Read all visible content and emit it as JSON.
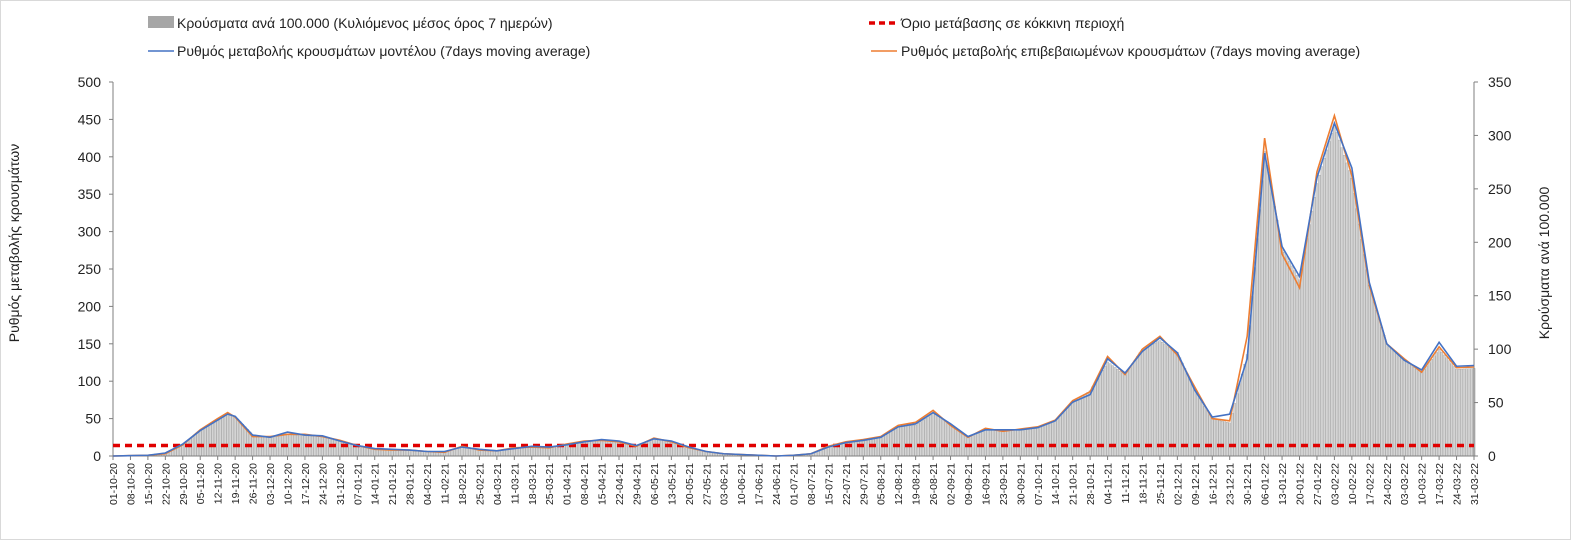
{
  "chart_data": {
    "type": "bar+line",
    "title": "",
    "y_left_label": "Ρυθμός μεταβολής κρουσμάτων",
    "y_right_label": "Κρούσματα ανά 100.000",
    "y_left_range": [
      0,
      500
    ],
    "y_left_ticks": [
      0,
      50,
      100,
      150,
      200,
      250,
      300,
      350,
      400,
      450,
      500
    ],
    "y_right_range": [
      0,
      350
    ],
    "y_right_ticks": [
      0,
      50,
      100,
      150,
      200,
      250,
      300,
      350
    ],
    "x_start_date": "2020-10-01",
    "x_end_date": "2022-03-31",
    "x_tick_labels": [
      "01-10-20",
      "08-10-20",
      "15-10-20",
      "22-10-20",
      "29-10-20",
      "05-11-20",
      "12-11-20",
      "19-11-20",
      "26-11-20",
      "03-12-20",
      "10-12-20",
      "17-12-20",
      "24-12-20",
      "31-12-20",
      "07-01-21",
      "14-01-21",
      "21-01-21",
      "28-01-21",
      "04-02-21",
      "11-02-21",
      "18-02-21",
      "25-02-21",
      "04-03-21",
      "11-03-21",
      "18-03-21",
      "25-03-21",
      "01-04-21",
      "08-04-21",
      "15-04-21",
      "22-04-21",
      "29-04-21",
      "06-05-21",
      "13-05-21",
      "20-05-21",
      "27-05-21",
      "03-06-21",
      "10-06-21",
      "17-06-21",
      "24-06-21",
      "01-07-21",
      "08-07-21",
      "15-07-21",
      "22-07-21",
      "29-07-21",
      "05-08-21",
      "12-08-21",
      "19-08-21",
      "26-08-21",
      "02-09-21",
      "09-09-21",
      "16-09-21",
      "23-09-21",
      "30-09-21",
      "07-10-21",
      "14-10-21",
      "21-10-21",
      "28-10-21",
      "04-11-21",
      "11-11-21",
      "18-11-21",
      "25-11-21",
      "02-12-21",
      "09-12-21",
      "16-12-21",
      "23-12-21",
      "30-12-21",
      "06-01-22",
      "13-01-22",
      "20-01-22",
      "27-01-22",
      "03-02-22",
      "10-02-22",
      "17-02-22",
      "24-02-22",
      "03-03-22",
      "10-03-22",
      "17-03-22",
      "24-03-22",
      "31-03-22"
    ],
    "legend": [
      {
        "key": "bars",
        "label": "Κρούσματα ανά 100.000 (Κυλιόμενος μέσος όρος 7 ημερών)",
        "color": "#a6a6a6"
      },
      {
        "key": "threshold",
        "label": "Όριο μετάβασης σε κόκκινη περιοχή",
        "color": "#e00000"
      },
      {
        "key": "model",
        "label": "Ρυθμός μεταβολής κρουσμάτων μοντέλου (7days moving average)",
        "color": "#4472c4"
      },
      {
        "key": "confirmed",
        "label": "Ρυθμός μεταβολής επιβεβαιωμένων κρουσμάτων (7days moving average)",
        "color": "#ed7d31"
      }
    ],
    "threshold_value_left_axis": 14,
    "series": [
      {
        "name": "Κρούσματα ανά 100.000 (Κυλιόμενος μέσος όρος 7 ημερών)",
        "axis": "right",
        "kind": "bar",
        "points": [
          [
            "2020-10-01",
            0
          ],
          [
            "2020-10-15",
            1
          ],
          [
            "2020-10-22",
            3
          ],
          [
            "2020-10-29",
            11
          ],
          [
            "2020-11-05",
            24
          ],
          [
            "2020-11-12",
            35
          ],
          [
            "2020-11-16",
            39
          ],
          [
            "2020-11-19",
            37
          ],
          [
            "2020-11-26",
            20
          ],
          [
            "2020-12-03",
            17
          ],
          [
            "2020-12-10",
            20
          ],
          [
            "2020-12-17",
            19
          ],
          [
            "2020-12-24",
            18
          ],
          [
            "2020-12-31",
            14
          ],
          [
            "2021-01-07",
            10
          ],
          [
            "2021-01-14",
            7
          ],
          [
            "2021-01-21",
            6
          ],
          [
            "2021-01-28",
            5
          ],
          [
            "2021-02-04",
            4
          ],
          [
            "2021-02-11",
            4
          ],
          [
            "2021-02-18",
            8
          ],
          [
            "2021-02-25",
            6
          ],
          [
            "2021-03-04",
            5
          ],
          [
            "2021-03-11",
            7
          ],
          [
            "2021-03-18",
            9
          ],
          [
            "2021-03-25",
            8
          ],
          [
            "2021-04-01",
            10
          ],
          [
            "2021-04-08",
            13
          ],
          [
            "2021-04-15",
            15
          ],
          [
            "2021-04-22",
            14
          ],
          [
            "2021-04-29",
            10
          ],
          [
            "2021-05-06",
            16
          ],
          [
            "2021-05-13",
            14
          ],
          [
            "2021-05-20",
            8
          ],
          [
            "2021-05-27",
            4
          ],
          [
            "2021-06-03",
            2
          ],
          [
            "2021-06-10",
            1
          ],
          [
            "2021-06-17",
            1
          ],
          [
            "2021-06-24",
            0
          ],
          [
            "2021-07-01",
            1
          ],
          [
            "2021-07-08",
            2
          ],
          [
            "2021-07-15",
            8
          ],
          [
            "2021-07-22",
            12
          ],
          [
            "2021-07-29",
            14
          ],
          [
            "2021-08-05",
            17
          ],
          [
            "2021-08-12",
            27
          ],
          [
            "2021-08-19",
            29
          ],
          [
            "2021-08-26",
            40
          ],
          [
            "2021-09-02",
            30
          ],
          [
            "2021-09-09",
            18
          ],
          [
            "2021-09-16",
            24
          ],
          [
            "2021-09-23",
            24
          ],
          [
            "2021-09-30",
            24
          ],
          [
            "2021-10-07",
            26
          ],
          [
            "2021-10-14",
            33
          ],
          [
            "2021-10-21",
            50
          ],
          [
            "2021-10-28",
            61
          ],
          [
            "2021-11-04",
            88
          ],
          [
            "2021-11-11",
            76
          ],
          [
            "2021-11-18",
            100
          ],
          [
            "2021-11-25",
            108
          ],
          [
            "2021-12-02",
            97
          ],
          [
            "2021-12-09",
            62
          ],
          [
            "2021-12-16",
            35
          ],
          [
            "2021-12-23",
            31
          ],
          [
            "2021-12-30",
            95
          ],
          [
            "2022-01-06",
            285
          ],
          [
            "2022-01-13",
            195
          ],
          [
            "2022-01-20",
            165
          ],
          [
            "2022-01-27",
            255
          ],
          [
            "2022-02-03",
            310
          ],
          [
            "2022-02-10",
            260
          ],
          [
            "2022-02-17",
            160
          ],
          [
            "2022-02-24",
            105
          ],
          [
            "2022-03-03",
            90
          ],
          [
            "2022-03-10",
            78
          ],
          [
            "2022-03-17",
            100
          ],
          [
            "2022-03-24",
            81
          ],
          [
            "2022-03-31",
            82
          ]
        ]
      },
      {
        "name": "Ρυθμός μεταβολής κρουσμάτων μοντέλου (7days moving average)",
        "axis": "left",
        "kind": "line",
        "points": [
          [
            "2020-10-01",
            0
          ],
          [
            "2020-10-15",
            1
          ],
          [
            "2020-10-22",
            4
          ],
          [
            "2020-10-29",
            16
          ],
          [
            "2020-11-05",
            34
          ],
          [
            "2020-11-12",
            48
          ],
          [
            "2020-11-16",
            56
          ],
          [
            "2020-11-19",
            53
          ],
          [
            "2020-11-26",
            28
          ],
          [
            "2020-12-03",
            25
          ],
          [
            "2020-12-10",
            32
          ],
          [
            "2020-12-17",
            28
          ],
          [
            "2020-12-24",
            27
          ],
          [
            "2020-12-31",
            20
          ],
          [
            "2021-01-07",
            14
          ],
          [
            "2021-01-14",
            10
          ],
          [
            "2021-01-21",
            9
          ],
          [
            "2021-01-28",
            8
          ],
          [
            "2021-02-04",
            6
          ],
          [
            "2021-02-11",
            6
          ],
          [
            "2021-02-18",
            12
          ],
          [
            "2021-02-25",
            9
          ],
          [
            "2021-03-04",
            7
          ],
          [
            "2021-03-11",
            10
          ],
          [
            "2021-03-18",
            13
          ],
          [
            "2021-03-25",
            12
          ],
          [
            "2021-04-01",
            15
          ],
          [
            "2021-04-08",
            19
          ],
          [
            "2021-04-15",
            22
          ],
          [
            "2021-04-22",
            20
          ],
          [
            "2021-04-29",
            14
          ],
          [
            "2021-05-06",
            23
          ],
          [
            "2021-05-13",
            20
          ],
          [
            "2021-05-20",
            12
          ],
          [
            "2021-05-27",
            6
          ],
          [
            "2021-06-03",
            3
          ],
          [
            "2021-06-10",
            2
          ],
          [
            "2021-06-17",
            1
          ],
          [
            "2021-06-24",
            0
          ],
          [
            "2021-07-01",
            1
          ],
          [
            "2021-07-08",
            3
          ],
          [
            "2021-07-15",
            12
          ],
          [
            "2021-07-22",
            18
          ],
          [
            "2021-07-29",
            21
          ],
          [
            "2021-08-05",
            25
          ],
          [
            "2021-08-12",
            39
          ],
          [
            "2021-08-19",
            43
          ],
          [
            "2021-08-26",
            58
          ],
          [
            "2021-09-02",
            43
          ],
          [
            "2021-09-09",
            26
          ],
          [
            "2021-09-16",
            35
          ],
          [
            "2021-09-23",
            35
          ],
          [
            "2021-09-30",
            35
          ],
          [
            "2021-10-07",
            38
          ],
          [
            "2021-10-14",
            47
          ],
          [
            "2021-10-21",
            72
          ],
          [
            "2021-10-28",
            82
          ],
          [
            "2021-11-04",
            130
          ],
          [
            "2021-11-11",
            111
          ],
          [
            "2021-11-18",
            140
          ],
          [
            "2021-11-25",
            158
          ],
          [
            "2021-12-02",
            138
          ],
          [
            "2021-12-09",
            88
          ],
          [
            "2021-12-16",
            52
          ],
          [
            "2021-12-23",
            56
          ],
          [
            "2021-12-30",
            130
          ],
          [
            "2022-01-06",
            405
          ],
          [
            "2022-01-13",
            280
          ],
          [
            "2022-01-20",
            240
          ],
          [
            "2022-01-27",
            372
          ],
          [
            "2022-02-03",
            445
          ],
          [
            "2022-02-10",
            385
          ],
          [
            "2022-02-17",
            232
          ],
          [
            "2022-02-24",
            150
          ],
          [
            "2022-03-03",
            128
          ],
          [
            "2022-03-10",
            115
          ],
          [
            "2022-03-17",
            152
          ],
          [
            "2022-03-24",
            120
          ],
          [
            "2022-03-31",
            121
          ]
        ]
      },
      {
        "name": "Ρυθμός μεταβολής επιβεβαιωμένων κρουσμάτων (7days moving average)",
        "axis": "left",
        "kind": "line",
        "points": [
          [
            "2020-10-01",
            0
          ],
          [
            "2020-10-15",
            1
          ],
          [
            "2020-10-22",
            3
          ],
          [
            "2020-10-29",
            15
          ],
          [
            "2020-11-05",
            35
          ],
          [
            "2020-11-12",
            50
          ],
          [
            "2020-11-16",
            58
          ],
          [
            "2020-11-19",
            52
          ],
          [
            "2020-11-26",
            26
          ],
          [
            "2020-12-03",
            26
          ],
          [
            "2020-12-10",
            29
          ],
          [
            "2020-12-17",
            29
          ],
          [
            "2020-12-24",
            26
          ],
          [
            "2020-12-31",
            21
          ],
          [
            "2021-01-07",
            14
          ],
          [
            "2021-01-14",
            9
          ],
          [
            "2021-01-21",
            8
          ],
          [
            "2021-01-28",
            8
          ],
          [
            "2021-02-04",
            6
          ],
          [
            "2021-02-11",
            5
          ],
          [
            "2021-02-18",
            13
          ],
          [
            "2021-02-25",
            8
          ],
          [
            "2021-03-04",
            7
          ],
          [
            "2021-03-11",
            11
          ],
          [
            "2021-03-18",
            12
          ],
          [
            "2021-03-25",
            11
          ],
          [
            "2021-04-01",
            16
          ],
          [
            "2021-04-08",
            20
          ],
          [
            "2021-04-15",
            21
          ],
          [
            "2021-04-22",
            19
          ],
          [
            "2021-04-29",
            13
          ],
          [
            "2021-05-06",
            24
          ],
          [
            "2021-05-13",
            19
          ],
          [
            "2021-05-20",
            11
          ],
          [
            "2021-05-27",
            6
          ],
          [
            "2021-06-03",
            3
          ],
          [
            "2021-06-10",
            2
          ],
          [
            "2021-06-17",
            1
          ],
          [
            "2021-06-24",
            0
          ],
          [
            "2021-07-01",
            1
          ],
          [
            "2021-07-08",
            3
          ],
          [
            "2021-07-15",
            13
          ],
          [
            "2021-07-22",
            19
          ],
          [
            "2021-07-29",
            22
          ],
          [
            "2021-08-05",
            26
          ],
          [
            "2021-08-12",
            41
          ],
          [
            "2021-08-19",
            45
          ],
          [
            "2021-08-26",
            61
          ],
          [
            "2021-09-02",
            41
          ],
          [
            "2021-09-09",
            25
          ],
          [
            "2021-09-16",
            37
          ],
          [
            "2021-09-23",
            33
          ],
          [
            "2021-09-30",
            36
          ],
          [
            "2021-10-07",
            39
          ],
          [
            "2021-10-14",
            48
          ],
          [
            "2021-10-21",
            74
          ],
          [
            "2021-10-28",
            86
          ],
          [
            "2021-11-04",
            133
          ],
          [
            "2021-11-11",
            109
          ],
          [
            "2021-11-18",
            143
          ],
          [
            "2021-11-25",
            160
          ],
          [
            "2021-12-02",
            135
          ],
          [
            "2021-12-09",
            92
          ],
          [
            "2021-12-16",
            50
          ],
          [
            "2021-12-23",
            47
          ],
          [
            "2021-12-30",
            160
          ],
          [
            "2022-01-06",
            425
          ],
          [
            "2022-01-13",
            270
          ],
          [
            "2022-01-20",
            225
          ],
          [
            "2022-01-27",
            380
          ],
          [
            "2022-02-03",
            455
          ],
          [
            "2022-02-10",
            375
          ],
          [
            "2022-02-17",
            228
          ],
          [
            "2022-02-24",
            150
          ],
          [
            "2022-03-03",
            130
          ],
          [
            "2022-03-10",
            112
          ],
          [
            "2022-03-17",
            146
          ],
          [
            "2022-03-24",
            118
          ],
          [
            "2022-03-31",
            119
          ]
        ]
      }
    ]
  }
}
